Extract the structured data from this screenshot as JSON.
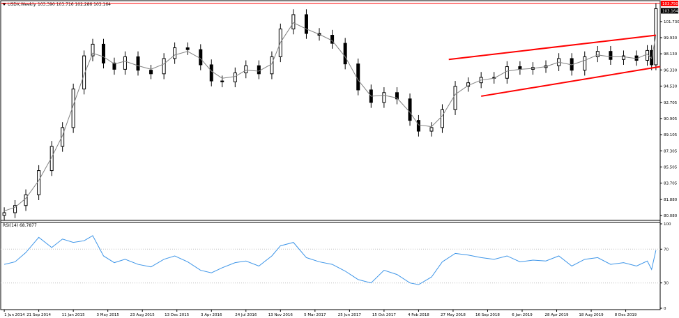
{
  "header": {
    "symbol_label": "USDX,Weekly",
    "ohlc_label": "103.390 103.716 102.286 103.164"
  },
  "rsi_panel": {
    "label": "RSI(14) 68.7877",
    "levels": [
      70,
      30
    ],
    "ticks": [
      "100",
      "70",
      "30",
      "0"
    ]
  },
  "price_axis": {
    "ticks": [
      "101.730",
      "99.930",
      "98.130",
      "96.330",
      "94.530",
      "92.705",
      "90.905",
      "89.105",
      "87.305",
      "85.505",
      "83.705",
      "81.880",
      "80.080"
    ],
    "resistance_value": "103.750",
    "current_value": "103.164"
  },
  "time_axis": {
    "ticks": [
      "1 Jun 2014",
      "21 Sep 2014",
      "11 Jan 2015",
      "3 May 2015",
      "23 Aug 2015",
      "13 Dec 2015",
      "3 Apr 2016",
      "24 Jul 2016",
      "13 Nov 2016",
      "5 Mar 2017",
      "25 Jun 2017",
      "15 Oct 2017",
      "4 Feb 2018",
      "27 May 2018",
      "16 Sep 2018",
      "6 Jan 2019",
      "28 Apr 2019",
      "18 Aug 2019",
      "8 Dec 2019"
    ]
  },
  "colors": {
    "candle": "#000000",
    "moving_average": "#808080",
    "channel": "#ff0000",
    "resistance_line": "#ff0000",
    "rsi_line": "#3d95e8",
    "current_price_badge": "#000000",
    "resistance_badge": "#ff0000"
  },
  "chart_data": [
    {
      "type": "candlestick",
      "title": "USDX,Weekly",
      "timeframe": "weekly",
      "x_range": [
        "2014-05-25",
        "2020-03-22"
      ],
      "ylim": [
        79.7,
        103.9
      ],
      "grid": false,
      "x": [
        "2014-06-01",
        "2014-07-06",
        "2014-08-10",
        "2014-09-21",
        "2014-11-02",
        "2014-12-07",
        "2015-01-11",
        "2015-02-15",
        "2015-03-15",
        "2015-04-19",
        "2015-05-24",
        "2015-06-28",
        "2015-08-09",
        "2015-09-20",
        "2015-11-01",
        "2015-12-06",
        "2016-01-17",
        "2016-02-28",
        "2016-04-03",
        "2016-05-08",
        "2016-06-19",
        "2016-07-24",
        "2016-09-04",
        "2016-10-16",
        "2016-11-13",
        "2016-12-25",
        "2017-02-05",
        "2017-03-19",
        "2017-04-30",
        "2017-06-11",
        "2017-07-23",
        "2017-09-03",
        "2017-10-15",
        "2017-11-26",
        "2018-01-07",
        "2018-02-04",
        "2018-03-18",
        "2018-04-22",
        "2018-06-03",
        "2018-07-15",
        "2018-08-26",
        "2018-10-07",
        "2018-11-18",
        "2018-12-30",
        "2019-02-10",
        "2019-03-24",
        "2019-05-05",
        "2019-06-16",
        "2019-07-28",
        "2019-09-08",
        "2019-10-20",
        "2019-12-01",
        "2020-01-12",
        "2020-02-16",
        "2020-03-01",
        "2020-03-15"
      ],
      "close": [
        80.4,
        81.2,
        82.4,
        85.1,
        87.8,
        89.9,
        94.2,
        97.9,
        99.2,
        97.1,
        96.4,
        97.8,
        96.3,
        95.9,
        97.6,
        98.8,
        98.6,
        96.9,
        95.1,
        95.0,
        96.0,
        96.8,
        95.9,
        97.8,
        100.9,
        102.5,
        100.4,
        100.2,
        99.3,
        97.0,
        94.1,
        92.7,
        93.8,
        93.1,
        90.7,
        89.5,
        89.9,
        91.9,
        94.5,
        94.9,
        95.5,
        95.4,
        96.7,
        96.4,
        96.6,
        96.8,
        97.6,
        96.3,
        97.8,
        98.4,
        97.5,
        97.9,
        97.4,
        98.5,
        96.9,
        103.164
      ],
      "moving_average": [
        80.6,
        81.0,
        82.0,
        84.0,
        86.6,
        89.0,
        92.4,
        95.8,
        98.2,
        97.8,
        97.0,
        97.3,
        96.8,
        96.4,
        97.0,
        98.0,
        98.4,
        97.6,
        96.2,
        95.4,
        95.6,
        96.3,
        96.2,
        97.0,
        99.4,
        101.6,
        100.9,
        100.3,
        99.6,
        97.8,
        95.2,
        93.4,
        93.5,
        93.2,
        91.6,
        90.2,
        90.0,
        91.2,
        93.6,
        94.6,
        95.2,
        95.4,
        96.2,
        96.4,
        96.5,
        96.7,
        97.2,
        96.9,
        97.4,
        98.0,
        97.8,
        97.8,
        97.6,
        98.1,
        97.6,
        100.2
      ],
      "current_price": 103.164,
      "resistance_level": 103.75,
      "channel": {
        "upper": [
          {
            "x": "2018-05-13",
            "y": 97.5
          },
          {
            "x": "2020-03-15",
            "y": 100.2
          }
        ],
        "lower": [
          {
            "x": "2018-08-26",
            "y": 93.4
          },
          {
            "x": "2020-03-29",
            "y": 96.7
          }
        ]
      }
    },
    {
      "type": "line",
      "title": "RSI(14) 68.7877",
      "ylim": [
        0,
        100
      ],
      "levels": [
        70,
        30
      ],
      "x": [
        "2014-06-01",
        "2014-07-06",
        "2014-08-10",
        "2014-09-21",
        "2014-11-02",
        "2014-12-07",
        "2015-01-11",
        "2015-02-15",
        "2015-03-15",
        "2015-04-19",
        "2015-05-24",
        "2015-06-28",
        "2015-08-09",
        "2015-09-20",
        "2015-11-01",
        "2015-12-06",
        "2016-01-17",
        "2016-02-28",
        "2016-04-03",
        "2016-05-08",
        "2016-06-19",
        "2016-07-24",
        "2016-09-04",
        "2016-10-16",
        "2016-11-13",
        "2016-12-25",
        "2017-02-05",
        "2017-03-19",
        "2017-04-30",
        "2017-06-11",
        "2017-07-23",
        "2017-09-03",
        "2017-10-15",
        "2017-11-26",
        "2018-01-07",
        "2018-02-04",
        "2018-03-18",
        "2018-04-22",
        "2018-06-03",
        "2018-07-15",
        "2018-08-26",
        "2018-10-07",
        "2018-11-18",
        "2018-12-30",
        "2019-02-10",
        "2019-03-24",
        "2019-05-05",
        "2019-06-16",
        "2019-07-28",
        "2019-09-08",
        "2019-10-20",
        "2019-12-01",
        "2020-01-12",
        "2020-02-16",
        "2020-03-01",
        "2020-03-15"
      ],
      "values": [
        52,
        55,
        66,
        84,
        72,
        82,
        78,
        80,
        86,
        62,
        54,
        58,
        52,
        49,
        58,
        62,
        55,
        45,
        42,
        48,
        54,
        56,
        50,
        62,
        74,
        78,
        60,
        55,
        52,
        44,
        34,
        30,
        45,
        40,
        30,
        28,
        37,
        55,
        65,
        63,
        60,
        58,
        62,
        55,
        57,
        56,
        62,
        50,
        58,
        60,
        52,
        54,
        50,
        56,
        46,
        68.7877
      ]
    }
  ]
}
